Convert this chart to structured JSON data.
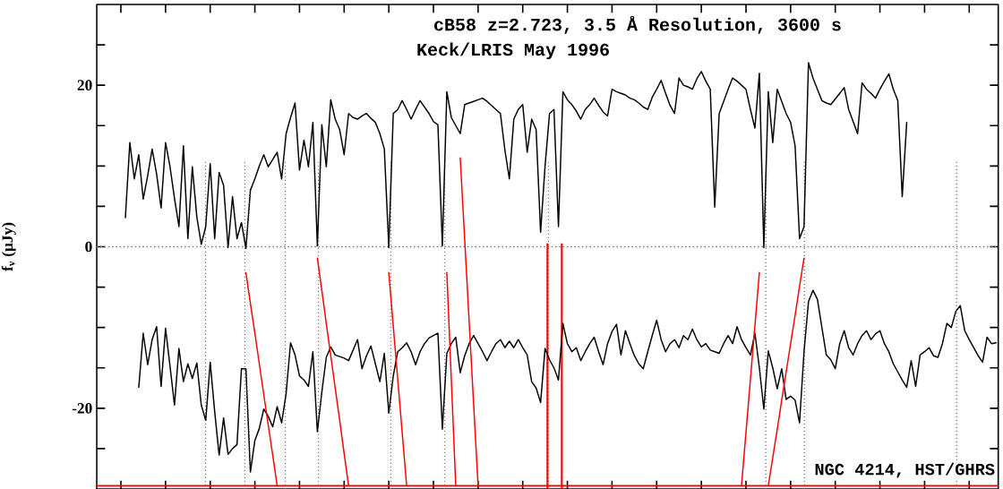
{
  "chart_data": {
    "type": "line",
    "title": "cB58 z=2.723, 3.5 Å Resolution, 3600 s",
    "subtitle": "Keck/LRIS May 1996",
    "ylabel": "f$_{ν}$ (μJy)",
    "annotations": [
      "NGC 4214, HST/GHRS"
    ],
    "categories": [
      null,
      null,
      null,
      null,
      null,
      null,
      null,
      null,
      null,
      null,
      null,
      null,
      null,
      null,
      null,
      null,
      null,
      null,
      null,
      null,
      null,
      null,
      null,
      null,
      null,
      null,
      null,
      null,
      null,
      null,
      null,
      null,
      null,
      null,
      null,
      null,
      null,
      null,
      null,
      null,
      null,
      null,
      null,
      null,
      null,
      null,
      null,
      null,
      null,
      null,
      null,
      null,
      null,
      null,
      null,
      null,
      null,
      null,
      null,
      null,
      null,
      null,
      null,
      null,
      null,
      null,
      null,
      null,
      null,
      null,
      null,
      null,
      null,
      null,
      null,
      null,
      null,
      null,
      null,
      null,
      null,
      null,
      null,
      null,
      null,
      null,
      null,
      null,
      null,
      null,
      null,
      null,
      null,
      null,
      null,
      null,
      null,
      null,
      null,
      null,
      null,
      null,
      null,
      null,
      null,
      null,
      null,
      null,
      null,
      null,
      null,
      null,
      null,
      null,
      null,
      null,
      null,
      null,
      null,
      null,
      null,
      null,
      null,
      null,
      null,
      null,
      null,
      null,
      null,
      null,
      null,
      null,
      null,
      null,
      null,
      null,
      null,
      null,
      null,
      null,
      null,
      null,
      null,
      null,
      null,
      null,
      null,
      null,
      null,
      null,
      null,
      null,
      null,
      null,
      null,
      null,
      null,
      null,
      null,
      null,
      null,
      null,
      null,
      null,
      null,
      null,
      null,
      null,
      null,
      null,
      null,
      null,
      null,
      null,
      null,
      null,
      null,
      null,
      null,
      null,
      null,
      null,
      null,
      null,
      null,
      null,
      null,
      null,
      null,
      null,
      null,
      null,
      null,
      null,
      null,
      null,
      null
    ],
    "ylim": [
      -30,
      30
    ],
    "yticks": [
      {
        "value": -25,
        "label": null
      },
      -20,
      {
        "value": -15,
        "label": null
      },
      {
        "value": -10,
        "label": null
      },
      {
        "value": -5,
        "label": null
      },
      0,
      {
        "value": 5,
        "label": null
      },
      {
        "value": 10,
        "label": null
      },
      {
        "value": 15,
        "label": null
      },
      20,
      {
        "value": 25,
        "label": null
      }
    ],
    "ref_lines": [
      {
        "axis": "y",
        "value": 0,
        "color": "#808080",
        "line_style": "dotted"
      },
      {
        "axis": "y",
        "value": -29.6,
        "color": "#ff0000",
        "line_style": "solid"
      }
    ],
    "series": [
      {
        "color": "#000000",
        "values": [
          null,
          3.6,
          12.9,
          8.4,
          11.4,
          5.9,
          8.8,
          12.1,
          9.0,
          4.8,
          12.9,
          9.9,
          6.0,
          2.5,
          12.5,
          1.0,
          9.9,
          3.7,
          0.3,
          2.5,
          10.3,
          1.0,
          9.2,
          7.6,
          -0.1,
          6.2,
          1.0,
          3.0,
          -0.2,
          7.0,
          8.4,
          10.0,
          11.4,
          9.9,
          10.8,
          11.7,
          8.4,
          14.0,
          16.0,
          17.8,
          9.5,
          13.2,
          9.9,
          15.4,
          0.1,
          15.1,
          9.9,
          18.2,
          15.8,
          14.5,
          11.4,
          16.5,
          16.0,
          15.8,
          16.2,
          16.5,
          15.9,
          15.4,
          14.0,
          12.1,
          -0.1,
          16.5,
          17.0,
          18.1,
          17.0,
          15.8,
          17.0,
          18.1,
          17.3,
          16.5,
          15.5,
          15.1,
          0.1,
          19.2,
          16.0,
          15.0,
          14.0,
          17.6,
          17.8,
          18.0,
          18.2,
          18.4,
          18.0,
          17.5,
          17.0,
          16.5,
          12.0,
          8.4,
          15.8,
          17.0,
          17.6,
          11.7,
          15.8,
          14.5,
          1.8,
          10.0,
          16.5,
          17.0,
          2.5,
          19.2,
          18.2,
          17.6,
          16.8,
          15.8,
          17.0,
          17.6,
          18.4,
          17.5,
          16.7,
          16.2,
          19.5,
          19.2,
          19.0,
          18.8,
          18.4,
          18.2,
          17.8,
          17.3,
          17.0,
          18.5,
          19.5,
          20.6,
          19.0,
          17.5,
          16.5,
          20.9,
          20.0,
          19.8,
          19.5,
          20.8,
          21.7,
          20.5,
          19.5,
          4.9,
          16.5,
          18.0,
          19.5,
          20.9,
          20.5,
          20.0,
          19.5,
          17.0,
          14.7,
          21.5,
          -0.1,
          19.2,
          12.9,
          19.5,
          18.0,
          16.5,
          15.4,
          12.5,
          1.0,
          2.5,
          22.8,
          20.9,
          19.5,
          18.1,
          17.8,
          17.6,
          18.3,
          19.0,
          19.7,
          17.0,
          15.5,
          14.0,
          20.3,
          19.5,
          19.0,
          18.4,
          19.5,
          20.5,
          21.4,
          19.5,
          18.1,
          6.2,
          15.4,
          null,
          null,
          null,
          null,
          null,
          null,
          null,
          null,
          null,
          null,
          null,
          null,
          null,
          null,
          null,
          null,
          null,
          null,
          null,
          null
        ]
      },
      {
        "color": "#000000",
        "values": [
          null,
          null,
          null,
          null,
          -17.4,
          -10.7,
          -14.6,
          -11.5,
          -9.9,
          -17.3,
          -10.1,
          -14.8,
          -19.6,
          -12.6,
          -16.7,
          -14.5,
          -16.3,
          -14.4,
          -19.6,
          -21.5,
          -14.3,
          -20.4,
          -25.8,
          -21.2,
          -25.7,
          -25.0,
          -24.5,
          -15.1,
          -15.1,
          -27.9,
          -24.0,
          -22.5,
          -20.1,
          -21.0,
          -22.3,
          -19.8,
          -21.8,
          -18.2,
          -11.9,
          -13.4,
          -16.0,
          -16.5,
          -17.3,
          -13.0,
          -22.9,
          -18.0,
          -13.7,
          -12.4,
          -13.4,
          -13.6,
          -13.8,
          -14.1,
          -12.8,
          -11.5,
          -15.1,
          -13.5,
          -12.3,
          -14.5,
          -16.7,
          -13.2,
          -20.6,
          -16.0,
          -13.0,
          -12.5,
          -11.9,
          -13.0,
          -14.6,
          -13.0,
          -12.0,
          -11.3,
          -11.0,
          -10.7,
          -22.6,
          -13.2,
          -12.0,
          -11.2,
          -15.6,
          -13.5,
          -12.0,
          -11.0,
          -12.0,
          -13.0,
          -14.1,
          -13.0,
          -12.0,
          -11.5,
          -12.5,
          -11.7,
          -12.5,
          -11.5,
          -12.5,
          -13.4,
          -16.7,
          -17.5,
          -19.3,
          -12.6,
          -14.0,
          -15.0,
          -16.5,
          -9.5,
          -12.0,
          -13.0,
          -12.5,
          -14.1,
          -13.0,
          -12.0,
          -11.2,
          -13.0,
          -14.6,
          -12.0,
          -10.5,
          -9.6,
          -13.4,
          -10.4,
          -12.0,
          -13.5,
          -14.5,
          -15.1,
          -13.0,
          -11.0,
          -9.1,
          -11.5,
          -13.0,
          -12.0,
          -11.5,
          -12.5,
          -11.0,
          -11.5,
          -10.2,
          -11.5,
          -12.4,
          -12.0,
          -12.8,
          -13.0,
          -13.2,
          -12.0,
          -11.0,
          -12.0,
          -9.9,
          -11.5,
          -12.5,
          -13.4,
          -10.7,
          -15.0,
          -20.1,
          -12.9,
          -15.0,
          -17.6,
          -15.1,
          -18.9,
          -18.5,
          -19.0,
          -21.8,
          -13.0,
          -6.8,
          -5.4,
          -6.5,
          -10.0,
          -13.4,
          -14.0,
          -15.1,
          -12.0,
          -10.4,
          -12.5,
          -13.4,
          -12.0,
          -11.0,
          -10.4,
          -11.5,
          -10.8,
          -10.4,
          -12.0,
          -13.0,
          -14.5,
          -15.5,
          -16.5,
          -17.4,
          -14.1,
          -17.3,
          -13.4,
          -13.0,
          -12.5,
          -13.5,
          -13.7,
          -12.0,
          -9.5,
          -10.0,
          -8.0,
          -7.3,
          -10.4,
          -11.5,
          -12.5,
          -13.5,
          -14.3,
          -11.2,
          -12.0,
          -11.9
        ]
      },
      {
        "color": "#ff0000",
        "values": [
          null,
          null,
          null,
          null,
          null,
          null,
          null,
          null,
          null,
          null,
          null,
          null,
          null,
          null,
          null,
          null,
          null,
          null,
          null,
          null,
          null,
          null,
          null,
          null,
          null,
          null,
          null,
          null,
          -3.2,
          -7.0,
          -10.7,
          -14.5,
          -18.3,
          -22.1,
          -25.8,
          -29.6,
          null,
          null,
          null,
          null,
          null,
          null,
          null,
          null,
          -1.4,
          -5.4,
          -9.5,
          -13.5,
          -17.5,
          -21.5,
          -25.6,
          -29.6,
          null,
          null,
          null,
          null,
          null,
          null,
          null,
          null,
          -3.2,
          -9.8,
          -16.4,
          -23.0,
          -29.6,
          null,
          null,
          null,
          null,
          null,
          null,
          null,
          null,
          -3.2,
          -16.4,
          -29.6,
          null,
          null,
          null,
          null,
          null,
          null,
          null,
          null,
          null,
          null,
          null,
          null,
          null,
          null,
          null,
          null,
          null,
          null,
          null,
          null,
          null,
          null,
          null,
          null,
          null,
          null,
          null,
          null,
          null,
          null,
          null,
          null,
          null,
          null,
          null,
          null,
          null,
          null,
          null,
          null,
          null,
          null,
          null,
          null,
          null,
          null,
          null,
          null,
          null,
          null,
          null,
          null,
          null,
          null,
          null,
          null,
          null,
          null,
          null,
          null,
          null,
          null,
          null,
          -29.6,
          -23.0,
          -16.4,
          -9.8,
          -3.2,
          null,
          -29.6,
          -26.1,
          -22.6,
          -19.0,
          -15.5,
          -12.0,
          -8.5,
          -4.9,
          -1.4,
          null,
          null,
          null,
          null,
          null,
          null,
          null,
          null,
          null,
          null,
          null,
          null,
          null,
          null,
          null,
          null,
          null,
          null,
          null,
          null,
          null,
          null,
          null,
          null,
          null,
          null,
          null,
          null,
          null,
          null,
          null,
          null,
          null,
          null,
          null,
          null,
          null,
          null,
          null,
          null,
          null,
          null,
          null
        ]
      },
      {
        "color": "#ff0000",
        "values": [
          null,
          null,
          null,
          null,
          null,
          null,
          null,
          null,
          null,
          null,
          null,
          null,
          null,
          null,
          null,
          null,
          null,
          null,
          null,
          null,
          null,
          null,
          null,
          null,
          null,
          null,
          null,
          null,
          null,
          null,
          null,
          null,
          null,
          null,
          null,
          null,
          null,
          null,
          null,
          null,
          null,
          null,
          null,
          null,
          null,
          null,
          null,
          null,
          null,
          null,
          null,
          null,
          null,
          null,
          null,
          null,
          null,
          null,
          null,
          null,
          null,
          null,
          null,
          null,
          null,
          null,
          null,
          null,
          null,
          null,
          null,
          null,
          null,
          null,
          null,
          null,
          11.0,
          0.9,
          -9.3,
          -19.5,
          -29.6,
          null,
          null,
          null,
          null,
          null,
          null,
          null,
          null,
          null,
          null,
          null,
          null,
          null,
          null,
          null,
          null,
          null,
          null,
          null,
          null,
          null,
          null,
          null,
          null,
          null,
          null,
          null,
          null,
          null,
          null,
          null,
          null,
          null,
          null,
          null,
          null,
          null,
          null,
          null,
          null,
          null,
          null,
          null,
          null,
          null,
          null,
          null,
          null,
          null,
          null,
          null,
          null,
          null,
          null,
          null,
          null,
          null,
          null,
          null,
          null,
          null,
          null,
          null,
          null,
          null,
          null,
          null,
          null,
          null,
          null,
          null,
          null,
          null,
          null,
          null,
          null,
          null,
          null,
          null,
          null,
          null,
          null,
          null,
          null,
          null,
          null,
          null,
          null,
          null,
          null,
          null,
          null,
          null,
          null,
          null,
          null,
          null,
          null,
          null,
          null,
          null,
          null,
          null,
          null,
          null,
          null,
          null,
          null,
          null,
          null,
          null,
          null,
          null,
          null,
          null,
          null
        ]
      }
    ]
  }
}
